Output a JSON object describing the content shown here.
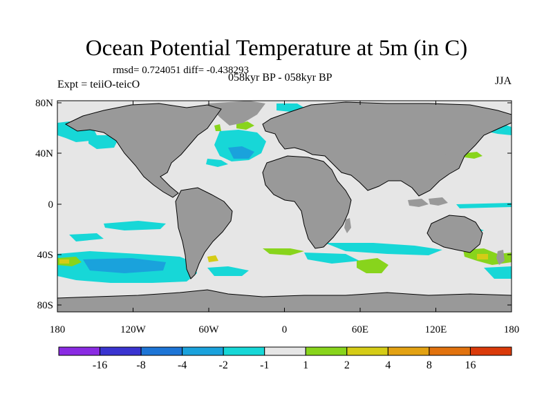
{
  "title": "Ocean Potential Temperature at 5m (in C)",
  "stats": "rmsd= 0.724051 diff= -0.438293",
  "experiment": "Expt = teiiO-teicO",
  "period": "058kyr BP - 058kyr BP",
  "season": "JJA",
  "colors": {
    "land": "#999999",
    "ocean_neutral": "#e6e6e6",
    "bins": [
      "#8a2be2",
      "#3a34d0",
      "#1d75d6",
      "#1aa2dc",
      "#17d7d7",
      "#e6e6e6",
      "#88d41c",
      "#d5cc16",
      "#e3a213",
      "#e1720e",
      "#da3a0a"
    ]
  },
  "axes": {
    "lon_ticks": [
      "180",
      "120W",
      "60W",
      "0",
      "60E",
      "120E",
      "180"
    ],
    "lat_ticks": [
      "80N",
      "40N",
      "0",
      "40S",
      "80S"
    ]
  },
  "colorbar": {
    "labels": [
      "-16",
      "-8",
      "-4",
      "-2",
      "-1",
      "1",
      "2",
      "4",
      "8",
      "16"
    ]
  }
}
